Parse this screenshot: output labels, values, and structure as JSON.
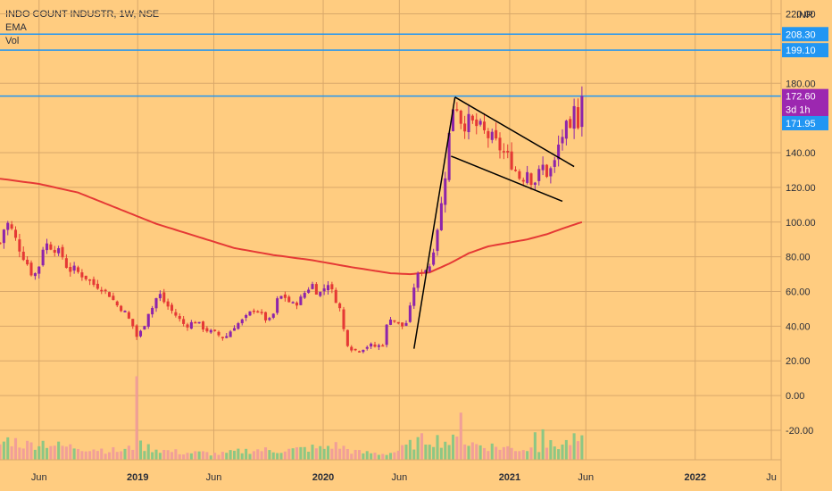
{
  "legend": {
    "symbol": "INDO COUNT INDUSTR, 1W, NSE",
    "ema": "EMA",
    "vol": "Vol"
  },
  "currency": "INR",
  "colors": {
    "background": "#FFCC80",
    "up": "#8E24AA",
    "down": "#E53935",
    "vol_up": "#81C784",
    "vol_down": "#EF9A9A",
    "ema": "#E53935",
    "hline": "#2196F3",
    "trend": "#000000",
    "price_tag": "#9C27B0",
    "level_tag": "#2196F3",
    "grid": "#d9a86a"
  },
  "chart_data": {
    "type": "candlestick",
    "title": "INDO COUNT INDUSTR, 1W, NSE",
    "y_ticks": [
      "220.00",
      "180.00",
      "140.00",
      "120.00",
      "100.00",
      "80.00",
      "60.00",
      "40.00",
      "20.00",
      "0.00",
      "-20.00"
    ],
    "y_tick_values": [
      220,
      180,
      140,
      120,
      100,
      80,
      60,
      40,
      20,
      0,
      -20
    ],
    "ylim": [
      -37,
      228
    ],
    "x_ticks": [
      {
        "label": "Jun",
        "pos": 40,
        "bold": false
      },
      {
        "label": "2019",
        "pos": 141,
        "bold": true
      },
      {
        "label": "Jun",
        "pos": 219,
        "bold": false
      },
      {
        "label": "2020",
        "pos": 331,
        "bold": true
      },
      {
        "label": "Jun",
        "pos": 409,
        "bold": false
      },
      {
        "label": "2021",
        "pos": 522,
        "bold": true
      },
      {
        "label": "Jun",
        "pos": 600,
        "bold": false
      },
      {
        "label": "2022",
        "pos": 712,
        "bold": true
      },
      {
        "label": "Ju",
        "pos": 790,
        "bold": false
      }
    ],
    "x_range": [
      0,
      800
    ],
    "price_key": [
      [
        0,
        88
      ],
      [
        6,
        100
      ],
      [
        10,
        98
      ],
      [
        16,
        90
      ],
      [
        22,
        82
      ],
      [
        28,
        76
      ],
      [
        34,
        68
      ],
      [
        40,
        75
      ],
      [
        45,
        88
      ],
      [
        52,
        86
      ],
      [
        58,
        84
      ],
      [
        64,
        80
      ],
      [
        70,
        72
      ],
      [
        76,
        73
      ],
      [
        82,
        70
      ],
      [
        88,
        68
      ],
      [
        96,
        64
      ],
      [
        104,
        62
      ],
      [
        112,
        58
      ],
      [
        120,
        52
      ],
      [
        128,
        48
      ],
      [
        136,
        40
      ],
      [
        140,
        34
      ],
      [
        146,
        38
      ],
      [
        152,
        48
      ],
      [
        158,
        52
      ],
      [
        162,
        60
      ],
      [
        168,
        54
      ],
      [
        174,
        50
      ],
      [
        182,
        45
      ],
      [
        190,
        40
      ],
      [
        200,
        43
      ],
      [
        210,
        38
      ],
      [
        220,
        36
      ],
      [
        230,
        33
      ],
      [
        240,
        40
      ],
      [
        250,
        44
      ],
      [
        260,
        50
      ],
      [
        266,
        48
      ],
      [
        272,
        44
      ],
      [
        278,
        43
      ],
      [
        284,
        55
      ],
      [
        290,
        58
      ],
      [
        296,
        54
      ],
      [
        302,
        52
      ],
      [
        308,
        56
      ],
      [
        314,
        61
      ],
      [
        320,
        64
      ],
      [
        326,
        58
      ],
      [
        332,
        62
      ],
      [
        336,
        65
      ],
      [
        340,
        60
      ],
      [
        344,
        55
      ],
      [
        348,
        50
      ],
      [
        352,
        38
      ],
      [
        356,
        30
      ],
      [
        362,
        26
      ],
      [
        370,
        27
      ],
      [
        378,
        29
      ],
      [
        386,
        28
      ],
      [
        392,
        30
      ],
      [
        396,
        40
      ],
      [
        400,
        45
      ],
      [
        406,
        42
      ],
      [
        412,
        40
      ],
      [
        418,
        43
      ],
      [
        422,
        58
      ],
      [
        426,
        68
      ],
      [
        430,
        70
      ],
      [
        434,
        74
      ],
      [
        438,
        72
      ],
      [
        442,
        78
      ],
      [
        446,
        92
      ],
      [
        450,
        102
      ],
      [
        454,
        118
      ],
      [
        458,
        138
      ],
      [
        462,
        162
      ],
      [
        466,
        172
      ],
      [
        470,
        162
      ],
      [
        474,
        156
      ],
      [
        480,
        158
      ],
      [
        486,
        156
      ],
      [
        492,
        154
      ],
      [
        498,
        150
      ],
      [
        504,
        148
      ],
      [
        510,
        144
      ],
      [
        516,
        140
      ],
      [
        522,
        136
      ],
      [
        528,
        130
      ],
      [
        534,
        124
      ],
      [
        540,
        130
      ],
      [
        546,
        122
      ],
      [
        550,
        126
      ],
      [
        556,
        132
      ],
      [
        560,
        128
      ],
      [
        564,
        130
      ],
      [
        568,
        134
      ],
      [
        572,
        144
      ],
      [
        576,
        150
      ],
      [
        580,
        154
      ],
      [
        584,
        150
      ],
      [
        588,
        164
      ],
      [
        592,
        158
      ],
      [
        596,
        172.6
      ]
    ],
    "volume_key": [
      [
        0,
        32
      ],
      [
        10,
        42
      ],
      [
        20,
        34
      ],
      [
        30,
        30
      ],
      [
        40,
        36
      ],
      [
        50,
        34
      ],
      [
        60,
        28
      ],
      [
        70,
        26
      ],
      [
        80,
        26
      ],
      [
        90,
        24
      ],
      [
        100,
        22
      ],
      [
        110,
        20
      ],
      [
        120,
        18
      ],
      [
        130,
        20
      ],
      [
        140,
        30
      ],
      [
        150,
        26
      ],
      [
        160,
        22
      ],
      [
        170,
        18
      ],
      [
        180,
        16
      ],
      [
        190,
        14
      ],
      [
        200,
        14
      ],
      [
        210,
        14
      ],
      [
        220,
        12
      ],
      [
        230,
        12
      ],
      [
        240,
        16
      ],
      [
        250,
        18
      ],
      [
        260,
        20
      ],
      [
        270,
        20
      ],
      [
        280,
        18
      ],
      [
        290,
        20
      ],
      [
        300,
        20
      ],
      [
        310,
        22
      ],
      [
        320,
        24
      ],
      [
        330,
        22
      ],
      [
        340,
        30
      ],
      [
        350,
        26
      ],
      [
        360,
        18
      ],
      [
        370,
        14
      ],
      [
        380,
        14
      ],
      [
        390,
        12
      ],
      [
        400,
        14
      ],
      [
        410,
        20
      ],
      [
        420,
        30
      ],
      [
        430,
        38
      ],
      [
        440,
        44
      ],
      [
        450,
        40
      ],
      [
        460,
        36
      ],
      [
        470,
        40
      ],
      [
        480,
        34
      ],
      [
        490,
        30
      ],
      [
        500,
        28
      ],
      [
        510,
        26
      ],
      [
        520,
        24
      ],
      [
        530,
        22
      ],
      [
        540,
        22
      ],
      [
        550,
        24
      ],
      [
        560,
        30
      ],
      [
        570,
        28
      ],
      [
        580,
        34
      ],
      [
        590,
        40
      ],
      [
        596,
        36
      ]
    ],
    "volume_spikes": [
      [
        34,
        88
      ],
      [
        38,
        96
      ],
      [
        46,
        90
      ],
      [
        140,
        170
      ],
      [
        234,
        74
      ],
      [
        330,
        80
      ],
      [
        342,
        54
      ],
      [
        430,
        128
      ],
      [
        472,
        96
      ],
      [
        506,
        100
      ],
      [
        548,
        56
      ],
      [
        556,
        62
      ],
      [
        570,
        56
      ],
      [
        586,
        86
      ]
    ],
    "ema_key": [
      [
        0,
        125
      ],
      [
        40,
        122
      ],
      [
        80,
        117
      ],
      [
        120,
        108
      ],
      [
        160,
        99
      ],
      [
        200,
        92
      ],
      [
        240,
        85
      ],
      [
        280,
        81
      ],
      [
        320,
        78
      ],
      [
        360,
        74
      ],
      [
        400,
        70.5
      ],
      [
        420,
        70
      ],
      [
        440,
        71
      ],
      [
        460,
        76
      ],
      [
        480,
        82
      ],
      [
        500,
        86
      ],
      [
        520,
        88
      ],
      [
        540,
        90
      ],
      [
        560,
        93
      ],
      [
        580,
        97
      ],
      [
        596,
        100
      ]
    ],
    "horizontal_levels": [
      208.3,
      199.1,
      172.6
    ],
    "trend_lines": [
      {
        "from": [
          424,
          27
        ],
        "to": [
          466,
          172
        ]
      },
      {
        "from": [
          466,
          172
        ],
        "to": [
          588,
          132
        ]
      },
      {
        "from": [
          462,
          138
        ],
        "to": [
          576,
          112
        ]
      }
    ],
    "price_tags": {
      "level_1": "208.30",
      "level_2": "199.10",
      "last": "172.60",
      "countdown": "3d 1h",
      "prev": "171.95"
    }
  }
}
